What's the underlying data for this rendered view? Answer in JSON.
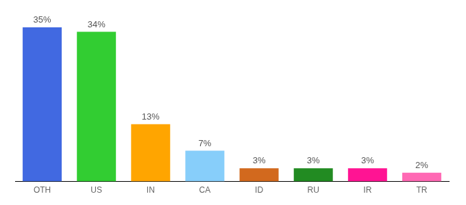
{
  "chart_data": {
    "type": "bar",
    "categories": [
      "OTH",
      "US",
      "IN",
      "CA",
      "ID",
      "RU",
      "IR",
      "TR"
    ],
    "values": [
      35,
      34,
      13,
      7,
      3,
      3,
      3,
      2
    ],
    "value_labels": [
      "35%",
      "34%",
      "13%",
      "7%",
      "3%",
      "3%",
      "3%",
      "2%"
    ],
    "colors": [
      "#4169e1",
      "#32cd32",
      "#ffa500",
      "#87cefa",
      "#d2691e",
      "#228b22",
      "#ff1493",
      "#ff69b4"
    ],
    "ylim": [
      0,
      35
    ],
    "grid": false,
    "data_labels": true,
    "tick_labels": "x"
  }
}
